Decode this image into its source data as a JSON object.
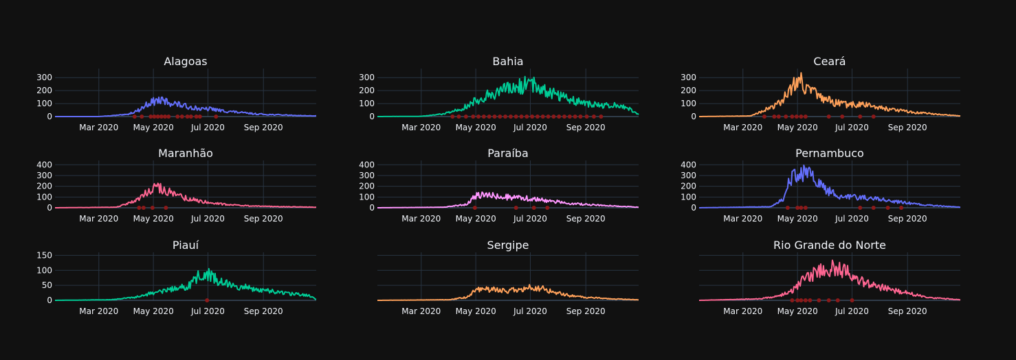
{
  "chart_data": {
    "type": "line",
    "x_tick_labels": [
      "Mar 2020",
      "May 2020",
      "Jul 2020",
      "Sep 2020"
    ],
    "x_ticks": [
      "2020-03-01",
      "2020-05-01",
      "2020-07-01",
      "2020-09-01"
    ],
    "x_range": [
      "2020-01-12",
      "2020-10-30"
    ],
    "markers_color": "#8b1a1a",
    "grid": true,
    "legend": "none",
    "panels": [
      {
        "title": "Alagoas",
        "color": "#636efa",
        "ylim": [
          0,
          370
        ],
        "yticks": [
          0,
          100,
          200,
          300
        ],
        "series": {
          "x": [
            "2020-01-12",
            "2020-03-01",
            "2020-04-01",
            "2020-04-15",
            "2020-04-25",
            "2020-05-05",
            "2020-05-15",
            "2020-05-25",
            "2020-06-05",
            "2020-06-15",
            "2020-06-25",
            "2020-07-05",
            "2020-07-15",
            "2020-07-25",
            "2020-08-10",
            "2020-08-25",
            "2020-09-10",
            "2020-09-25",
            "2020-10-10",
            "2020-10-30"
          ],
          "y": [
            0,
            0,
            15,
            50,
            100,
            125,
            115,
            100,
            80,
            70,
            55,
            60,
            45,
            40,
            28,
            20,
            15,
            12,
            8,
            5
          ]
        },
        "markers": [
          "2020-04-10",
          "2020-04-18",
          "2020-04-28",
          "2020-05-02",
          "2020-05-06",
          "2020-05-10",
          "2020-05-14",
          "2020-05-18",
          "2020-05-28",
          "2020-06-02",
          "2020-06-08",
          "2020-06-12",
          "2020-06-18",
          "2020-06-22",
          "2020-07-10"
        ]
      },
      {
        "title": "Bahia",
        "color": "#00cc96",
        "ylim": [
          0,
          370
        ],
        "yticks": [
          0,
          100,
          200,
          300
        ],
        "series": {
          "x": [
            "2020-01-12",
            "2020-03-01",
            "2020-03-25",
            "2020-04-15",
            "2020-05-01",
            "2020-05-15",
            "2020-06-01",
            "2020-06-15",
            "2020-07-01",
            "2020-07-15",
            "2020-08-01",
            "2020-08-15",
            "2020-09-01",
            "2020-09-15",
            "2020-10-01",
            "2020-10-15",
            "2020-10-30"
          ],
          "y": [
            0,
            2,
            20,
            60,
            120,
            170,
            200,
            220,
            260,
            210,
            170,
            130,
            100,
            85,
            85,
            80,
            15
          ]
        },
        "markers": [
          "2020-04-05",
          "2020-04-12",
          "2020-04-20",
          "2020-04-28",
          "2020-05-04",
          "2020-05-10",
          "2020-05-16",
          "2020-05-22",
          "2020-05-28",
          "2020-06-03",
          "2020-06-09",
          "2020-06-15",
          "2020-06-21",
          "2020-06-27",
          "2020-07-03",
          "2020-07-09",
          "2020-07-15",
          "2020-07-21",
          "2020-07-27",
          "2020-08-02",
          "2020-08-08",
          "2020-08-14",
          "2020-08-20",
          "2020-08-26",
          "2020-09-02",
          "2020-09-10",
          "2020-09-18"
        ]
      },
      {
        "title": "Ceará",
        "color": "#ffa15a",
        "ylim": [
          0,
          370
        ],
        "yticks": [
          0,
          100,
          200,
          300
        ],
        "series": {
          "x": [
            "2020-01-12",
            "2020-03-10",
            "2020-03-25",
            "2020-04-10",
            "2020-04-25",
            "2020-05-01",
            "2020-05-10",
            "2020-05-25",
            "2020-06-10",
            "2020-06-25",
            "2020-07-10",
            "2020-07-25",
            "2020-08-10",
            "2020-08-25",
            "2020-09-10",
            "2020-09-25",
            "2020-10-10",
            "2020-10-30"
          ],
          "y": [
            0,
            5,
            50,
            100,
            220,
            310,
            230,
            150,
            110,
            90,
            95,
            80,
            60,
            45,
            30,
            25,
            15,
            5
          ]
        },
        "markers": [
          "2020-03-25",
          "2020-04-05",
          "2020-04-10",
          "2020-04-18",
          "2020-04-25",
          "2020-04-30",
          "2020-05-05",
          "2020-05-10",
          "2020-06-05",
          "2020-06-20",
          "2020-07-10",
          "2020-07-25"
        ]
      },
      {
        "title": "Maranhão",
        "color": "#ff6692",
        "ylim": [
          0,
          440
        ],
        "yticks": [
          0,
          100,
          200,
          300,
          400
        ],
        "series": {
          "x": [
            "2020-01-12",
            "2020-03-20",
            "2020-04-10",
            "2020-04-25",
            "2020-05-01",
            "2020-05-10",
            "2020-05-25",
            "2020-06-10",
            "2020-06-25",
            "2020-07-10",
            "2020-07-25",
            "2020-08-10",
            "2020-08-25",
            "2020-09-10",
            "2020-10-10",
            "2020-10-30"
          ],
          "y": [
            0,
            5,
            60,
            150,
            200,
            180,
            120,
            80,
            60,
            40,
            30,
            20,
            15,
            12,
            8,
            5
          ]
        },
        "markers": [
          "2020-04-15",
          "2020-04-20",
          "2020-04-30",
          "2020-05-15"
        ]
      },
      {
        "title": "Paraíba",
        "color": "#ff97ff",
        "ylim": [
          0,
          440
        ],
        "yticks": [
          0,
          100,
          200,
          300,
          400
        ],
        "series": {
          "x": [
            "2020-01-12",
            "2020-03-25",
            "2020-04-20",
            "2020-05-01",
            "2020-05-15",
            "2020-06-01",
            "2020-06-15",
            "2020-07-01",
            "2020-07-15",
            "2020-08-01",
            "2020-08-15",
            "2020-09-01",
            "2020-09-15",
            "2020-10-01",
            "2020-10-30"
          ],
          "y": [
            0,
            5,
            30,
            110,
            120,
            100,
            95,
            85,
            70,
            55,
            40,
            30,
            25,
            18,
            5
          ]
        },
        "markers": [
          "2020-04-30",
          "2020-06-15",
          "2020-07-05",
          "2020-07-20"
        ]
      },
      {
        "title": "Pernambuco",
        "color": "#636efa",
        "ylim": [
          0,
          440
        ],
        "yticks": [
          0,
          100,
          200,
          300,
          400
        ],
        "series": {
          "x": [
            "2020-01-12",
            "2020-04-01",
            "2020-04-15",
            "2020-04-22",
            "2020-05-01",
            "2020-05-10",
            "2020-05-20",
            "2020-06-01",
            "2020-06-15",
            "2020-07-01",
            "2020-07-15",
            "2020-08-01",
            "2020-08-15",
            "2020-09-01",
            "2020-09-15",
            "2020-10-01",
            "2020-10-30"
          ],
          "y": [
            0,
            10,
            80,
            270,
            300,
            330,
            260,
            170,
            110,
            100,
            95,
            80,
            60,
            45,
            30,
            20,
            5
          ]
        },
        "markers": [
          "2020-04-20",
          "2020-05-01",
          "2020-05-05",
          "2020-05-10",
          "2020-07-10",
          "2020-07-25",
          "2020-08-10",
          "2020-08-25"
        ]
      },
      {
        "title": "Piauí",
        "color": "#00cc96",
        "ylim": [
          0,
          160
        ],
        "yticks": [
          0,
          50,
          100,
          150
        ],
        "series": {
          "x": [
            "2020-01-12",
            "2020-03-15",
            "2020-04-10",
            "2020-05-01",
            "2020-05-20",
            "2020-06-10",
            "2020-06-20",
            "2020-07-01",
            "2020-07-15",
            "2020-08-01",
            "2020-08-15",
            "2020-09-01",
            "2020-09-15",
            "2020-10-01",
            "2020-10-20",
            "2020-10-30"
          ],
          "y": [
            0,
            2,
            10,
            25,
            35,
            50,
            80,
            85,
            60,
            50,
            40,
            32,
            28,
            22,
            18,
            3
          ]
        },
        "markers": [
          "2020-06-30"
        ]
      },
      {
        "title": "Sergipe",
        "color": "#ffa15a",
        "ylim": [
          0,
          160
        ],
        "yticks": [],
        "series": {
          "x": [
            "2020-01-12",
            "2020-04-01",
            "2020-04-20",
            "2020-05-01",
            "2020-05-15",
            "2020-06-01",
            "2020-06-15",
            "2020-07-01",
            "2020-07-15",
            "2020-08-01",
            "2020-08-15",
            "2020-09-01",
            "2020-09-15",
            "2020-10-01",
            "2020-10-30"
          ],
          "y": [
            0,
            2,
            10,
            35,
            38,
            32,
            35,
            42,
            38,
            25,
            15,
            10,
            8,
            5,
            2
          ]
        },
        "markers": []
      },
      {
        "title": "Rio Grande do Norte",
        "color": "#ff6692",
        "ylim": [
          0,
          160
        ],
        "yticks": [],
        "series": {
          "x": [
            "2020-01-12",
            "2020-03-20",
            "2020-04-10",
            "2020-04-25",
            "2020-05-05",
            "2020-05-20",
            "2020-06-05",
            "2020-06-20",
            "2020-07-01",
            "2020-07-15",
            "2020-08-01",
            "2020-08-15",
            "2020-09-01",
            "2020-09-15",
            "2020-10-01",
            "2020-10-30"
          ],
          "y": [
            0,
            5,
            15,
            30,
            60,
            90,
            110,
            100,
            85,
            60,
            45,
            35,
            25,
            15,
            8,
            2
          ]
        },
        "markers": [
          "2020-04-25",
          "2020-05-01",
          "2020-05-05",
          "2020-05-10",
          "2020-05-15",
          "2020-05-25",
          "2020-06-05",
          "2020-06-15",
          "2020-07-01"
        ]
      }
    ]
  }
}
